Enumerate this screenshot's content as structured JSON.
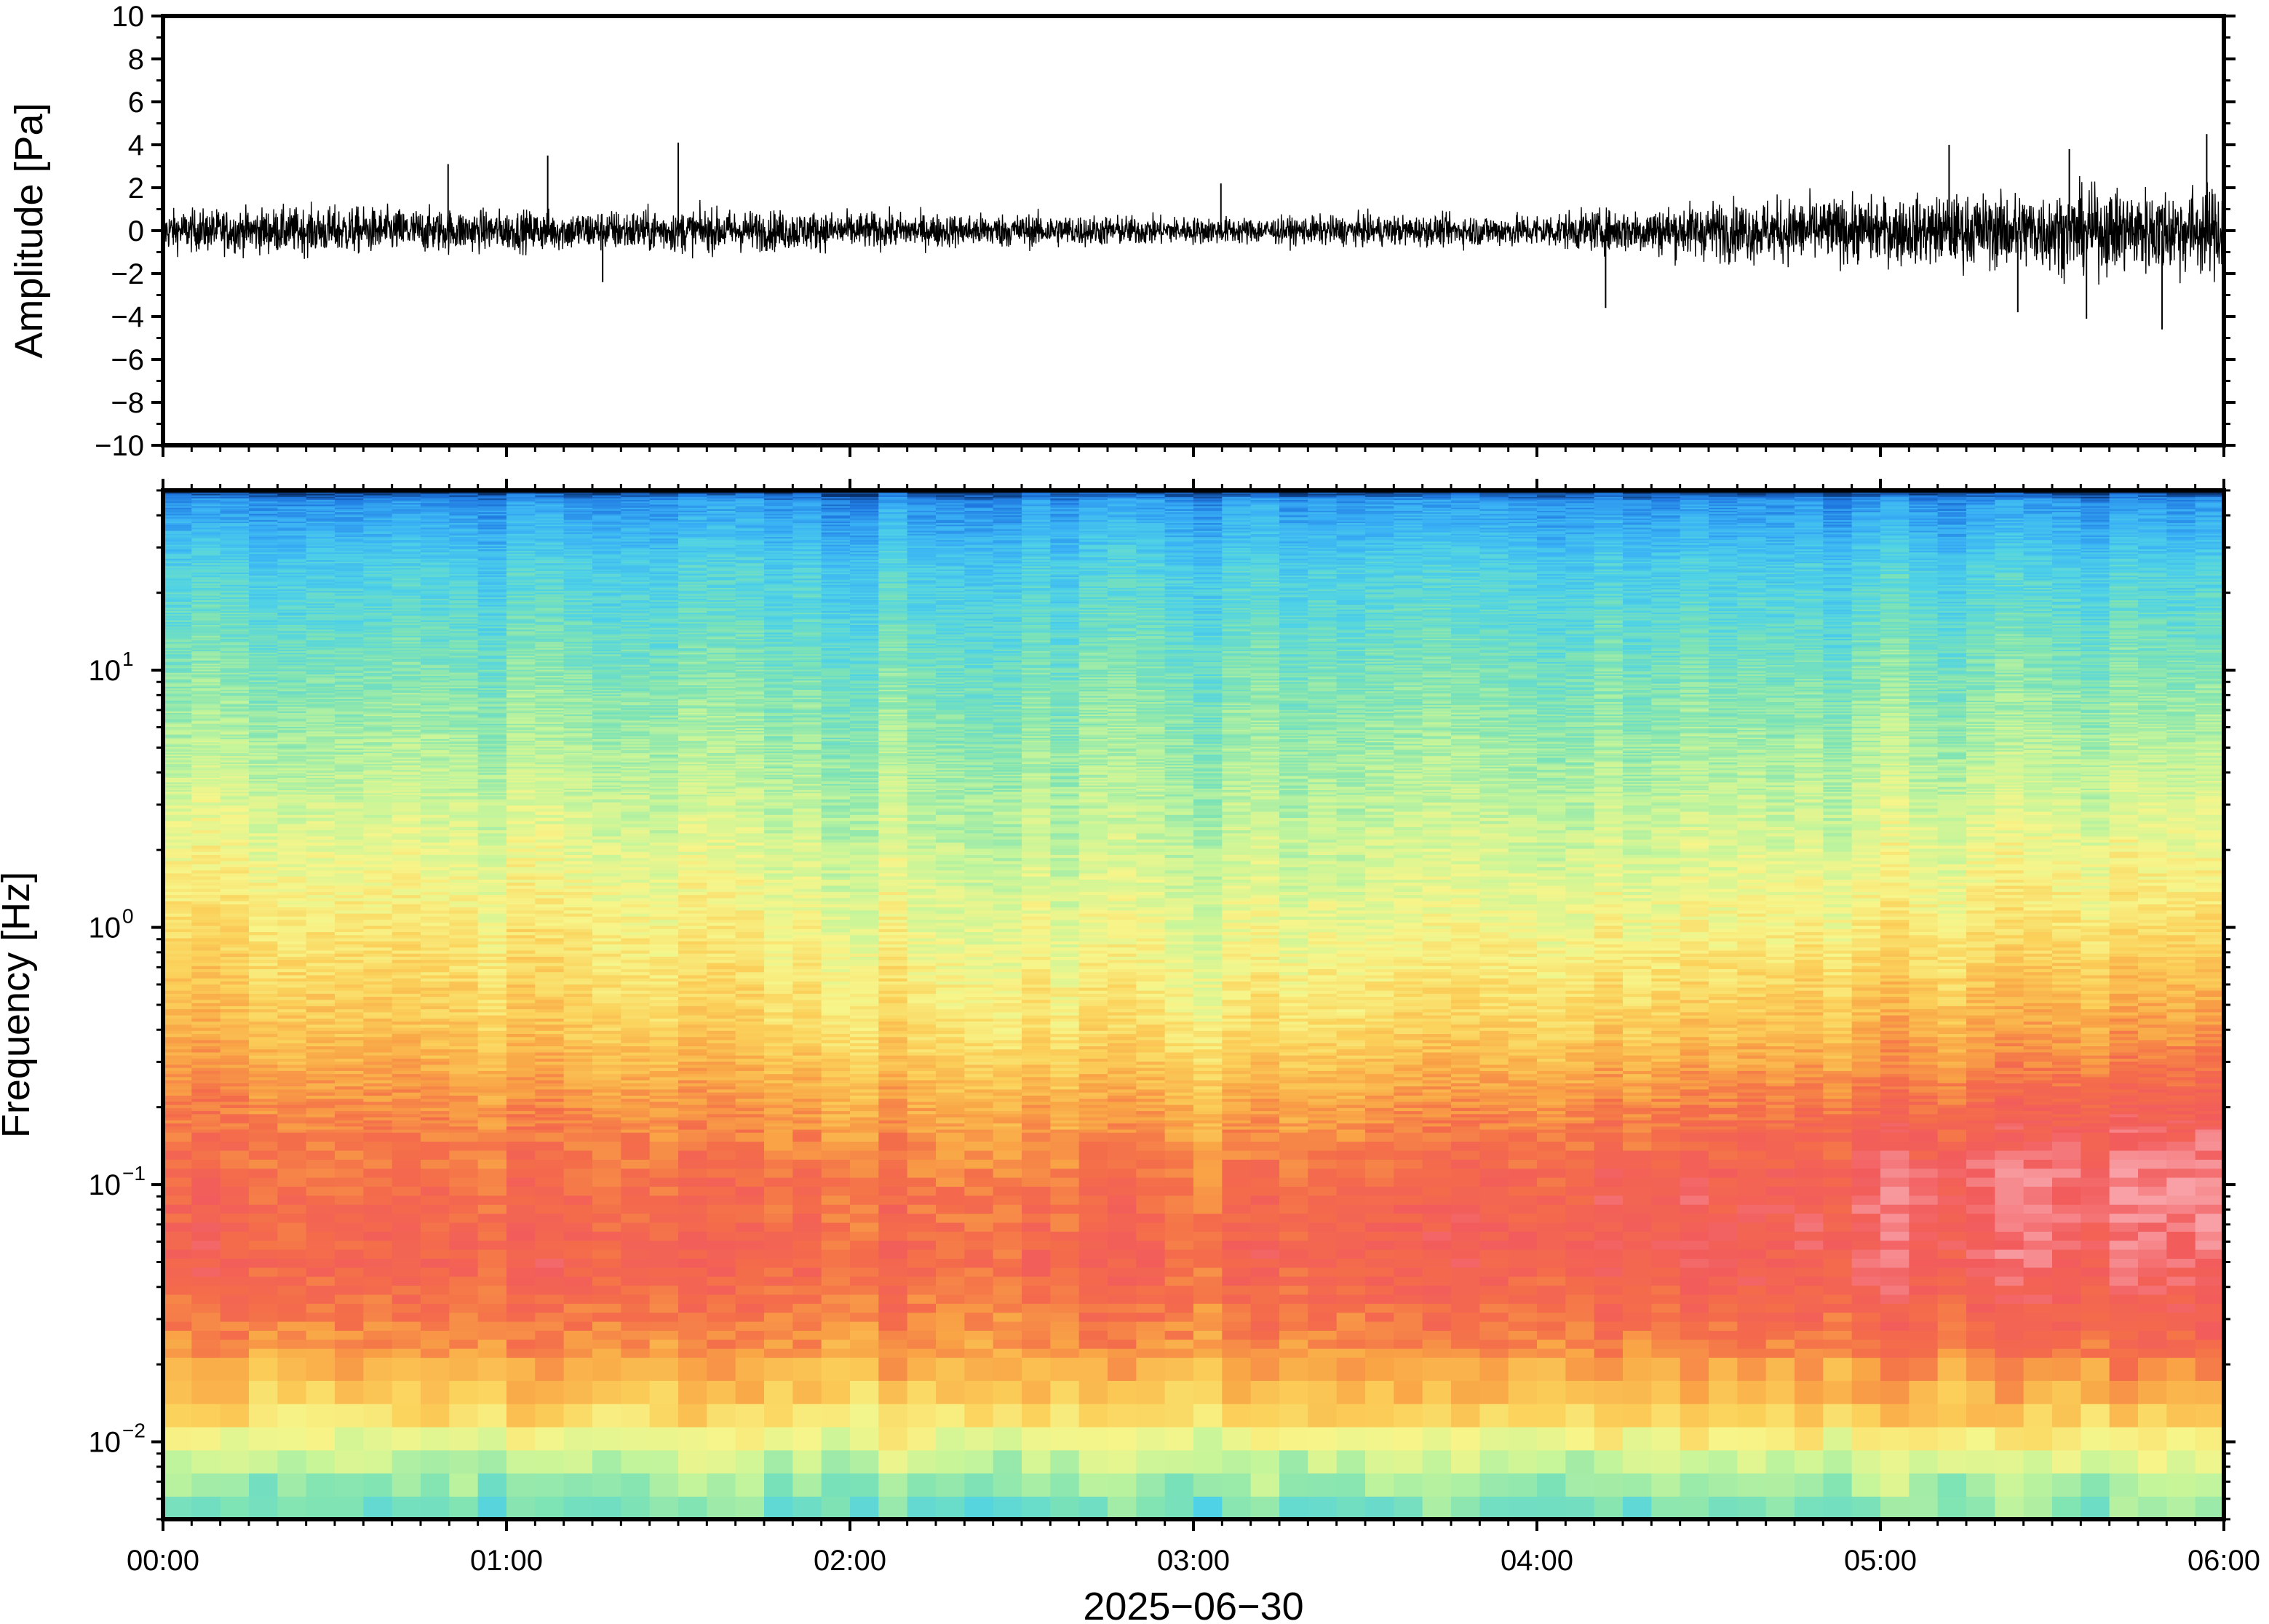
{
  "chart_data": [
    {
      "type": "line",
      "ylabel": "Amplitude [Pa]",
      "ylim": [
        -10,
        10
      ],
      "yticks": [
        10,
        8,
        6,
        4,
        2,
        0,
        -2,
        -4,
        -6,
        -8,
        -10
      ],
      "ytick_labels": [
        "10",
        "8",
        "6",
        "4",
        "2",
        "0",
        "−2",
        "−4",
        "−6",
        "−8",
        "−10"
      ],
      "x_range": [
        "00:00",
        "06:00"
      ],
      "series": [
        {
          "color": "#000000",
          "x_hours": [
            0,
            0.25,
            0.5,
            0.75,
            1.0,
            1.25,
            1.5,
            1.75,
            2.0,
            2.25,
            2.5,
            2.75,
            3.0,
            3.25,
            3.5,
            3.75,
            4.0,
            4.25,
            4.5,
            4.75,
            5.0,
            5.25,
            5.5,
            5.75,
            6.0
          ],
          "envelope": [
            1.2,
            1.3,
            1.4,
            1.3,
            1.2,
            1.2,
            1.3,
            1.2,
            1.1,
            1.0,
            1.0,
            0.9,
            0.8,
            0.8,
            0.9,
            0.9,
            1.0,
            1.3,
            1.7,
            1.9,
            1.9,
            2.1,
            2.4,
            2.5,
            2.7
          ],
          "spikes": [
            {
              "x": 0.83,
              "y": 3.1
            },
            {
              "x": 1.12,
              "y": 3.5
            },
            {
              "x": 1.5,
              "y": 4.1
            },
            {
              "x": 1.28,
              "y": -2.4
            },
            {
              "x": 3.08,
              "y": 2.2
            },
            {
              "x": 4.2,
              "y": -3.6
            },
            {
              "x": 5.2,
              "y": 4.0
            },
            {
              "x": 5.55,
              "y": 3.8
            },
            {
              "x": 5.6,
              "y": -4.1
            },
            {
              "x": 5.82,
              "y": -4.6
            },
            {
              "x": 5.95,
              "y": 4.5
            },
            {
              "x": 5.4,
              "y": -3.8
            }
          ]
        }
      ]
    },
    {
      "type": "heatmap",
      "ylabel": "Frequency [Hz]",
      "y_scale": "log",
      "ylim": [
        0.005,
        50
      ],
      "ytick_labels": [
        {
          "base": "10",
          "exp": "1",
          "value": 10
        },
        {
          "base": "10",
          "exp": "0",
          "value": 1
        },
        {
          "base": "10",
          "exp": "−1",
          "value": 0.1
        },
        {
          "base": "10",
          "exp": "−2",
          "value": 0.01
        }
      ],
      "xlabel": "2025−06−30",
      "xtick_labels": [
        "00:00",
        "01:00",
        "02:00",
        "03:00",
        "04:00",
        "05:00",
        "06:00"
      ],
      "x_range_hours": [
        0,
        6
      ],
      "colormap": [
        "#08306b",
        "#1f78e0",
        "#39b0f5",
        "#4fd2e6",
        "#7fe3b4",
        "#c6f59a",
        "#f7f58a",
        "#fbd15a",
        "#f9a546",
        "#f46d4a",
        "#f25c5c",
        "#f8a0a6"
      ],
      "level_profile": {
        "log10_freq": [
          -2.3,
          -2.1,
          -1.9,
          -1.6,
          -1.3,
          -1.0,
          -0.7,
          -0.4,
          0.0,
          0.5,
          1.0,
          1.4,
          1.66,
          1.7
        ],
        "level_0h": [
          0.35,
          0.45,
          0.62,
          0.78,
          0.88,
          0.85,
          0.8,
          0.7,
          0.62,
          0.5,
          0.38,
          0.28,
          0.15,
          0.0
        ],
        "level_3h": [
          0.32,
          0.42,
          0.6,
          0.76,
          0.84,
          0.8,
          0.7,
          0.58,
          0.5,
          0.42,
          0.34,
          0.26,
          0.14,
          0.0
        ],
        "level_6h": [
          0.38,
          0.5,
          0.66,
          0.86,
          0.95,
          0.99,
          0.9,
          0.76,
          0.62,
          0.5,
          0.38,
          0.28,
          0.15,
          0.0
        ]
      }
    }
  ]
}
